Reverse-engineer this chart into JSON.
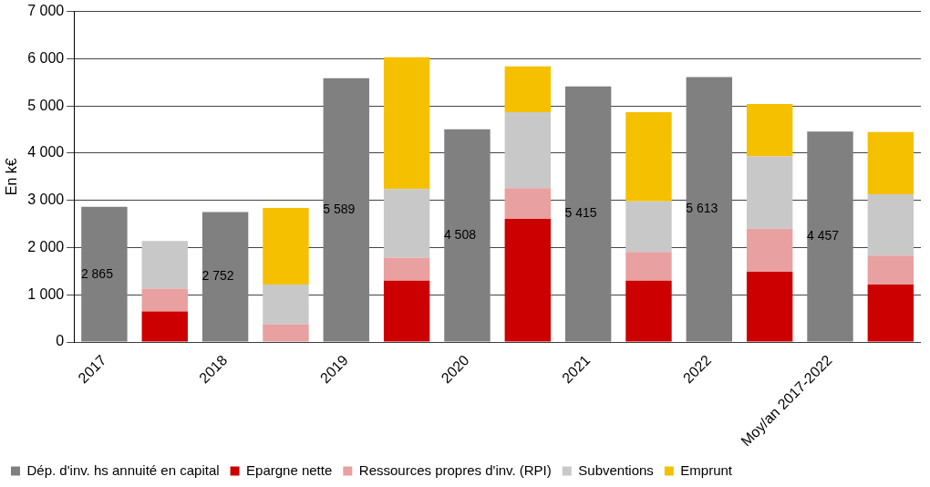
{
  "chart_data": {
    "type": "bar",
    "ylabel": "En k€",
    "categories": [
      "2017",
      null,
      "2018",
      null,
      "2019",
      null,
      "2020",
      null,
      "2021",
      null,
      "2022",
      null,
      "Moy/an 2017-2022",
      null
    ],
    "series": [
      {
        "name": "Dép. d'inv. hs annuité en capital",
        "color": "#808080",
        "values": [
          2865,
          null,
          2752,
          null,
          5589,
          null,
          4508,
          null,
          5415,
          null,
          5613,
          null,
          4457,
          null
        ],
        "value_labels": [
          "2 865",
          null,
          "2 752",
          null,
          "5 589",
          null,
          "4 508",
          null,
          "5 415",
          null,
          "5 613",
          null,
          "4 457",
          null
        ]
      },
      {
        "name": "Epargne nette",
        "color": "#cc0000",
        "values": [
          null,
          650,
          null,
          0,
          null,
          1300,
          null,
          2610,
          null,
          1300,
          null,
          1490,
          null,
          1220
        ]
      },
      {
        "name": "Ressources propres d'inv. (RPI)",
        "color": "#e8a0a0",
        "values": [
          null,
          480,
          null,
          380,
          null,
          490,
          null,
          650,
          null,
          610,
          null,
          910,
          null,
          610
        ]
      },
      {
        "name": "Subventions",
        "color": "#c8c8c8",
        "values": [
          null,
          1010,
          null,
          840,
          null,
          1450,
          null,
          1610,
          null,
          1070,
          null,
          1530,
          null,
          1300
        ]
      },
      {
        "name": "Emprunt",
        "color": "#f5c000",
        "values": [
          null,
          0,
          null,
          1620,
          null,
          2790,
          null,
          970,
          null,
          1890,
          null,
          1110,
          null,
          1320
        ]
      }
    ],
    "stacked": true,
    "ylim": [
      0,
      7000
    ],
    "yticks": [
      {
        "value": 0,
        "label": "0"
      },
      {
        "value": 1000,
        "label": "1 000"
      },
      {
        "value": 2000,
        "label": "2 000"
      },
      {
        "value": 3000,
        "label": "3 000"
      },
      {
        "value": 4000,
        "label": "4 000"
      },
      {
        "value": 5000,
        "label": "5 000"
      },
      {
        "value": 6000,
        "label": "6 000"
      },
      {
        "value": 7000,
        "label": "7 000"
      }
    ],
    "grid": "y",
    "legend": "bottom"
  }
}
